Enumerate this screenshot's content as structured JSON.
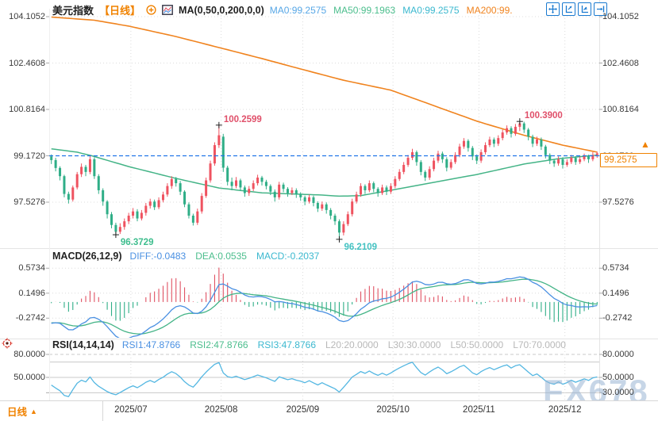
{
  "header": {
    "symbol": "美元指数",
    "timeframe": "【日线】",
    "ma_settings": "MA(0,50,0,200,0,0)",
    "ma_values": [
      {
        "label": "MA0:99.2575",
        "color": "#57a7e6"
      },
      {
        "label": "MA50:99.1963",
        "color": "#4cbe8d"
      },
      {
        "label": "MA0:99.2575",
        "color": "#3bb8cf"
      },
      {
        "label": "MA200:99.",
        "color": "#f0831e"
      }
    ]
  },
  "toolbar": {
    "icons": [
      "move-icon",
      "y-axis-scale-icon",
      "x-axis-scale-icon",
      "jump-to-latest-icon"
    ]
  },
  "axes": {
    "price": [
      "104.1052",
      "102.4608",
      "100.8164",
      "99.1720",
      "97.5276"
    ],
    "macd": [
      "0.5734",
      "0.1496",
      "-0.2742"
    ],
    "rsi_left": [
      "80.0000",
      "50.0000"
    ],
    "rsi_right": [
      "80.0000",
      "50.0000",
      "30.0000"
    ]
  },
  "price_pane": {
    "current_price": "99.2575",
    "arrow": "▲",
    "annotations": [
      {
        "text": "100.2599",
        "color": "#e0506a",
        "type": "high",
        "index": 39
      },
      {
        "text": "100.3900",
        "color": "#e0506a",
        "type": "high",
        "index": 109
      },
      {
        "text": "96.3729",
        "color": "#3dbd8d",
        "type": "low",
        "index": 15
      },
      {
        "text": "96.2109",
        "color": "#43c2c2",
        "type": "low",
        "index": 67
      }
    ]
  },
  "macd_pane": {
    "title": "MACD(26,12,9)",
    "values": [
      {
        "label": "DIFF:-0.0483",
        "color": "#4a90e2"
      },
      {
        "label": "DEA:0.0535",
        "color": "#4cbe8d"
      },
      {
        "label": "MACD:-0.2037",
        "color": "#3bb8cf"
      }
    ]
  },
  "rsi_pane": {
    "title": "RSI(14,14,14)",
    "values": [
      {
        "label": "RSI1:47.8766",
        "color": "#4a90e2"
      },
      {
        "label": "RSI2:47.8766",
        "color": "#4cbe8d"
      },
      {
        "label": "RSI3:47.8766",
        "color": "#3bb8cf"
      }
    ],
    "levels": [
      {
        "label": "L20:20.0000"
      },
      {
        "label": "L30:30.0000"
      },
      {
        "label": "L50:50.0000"
      },
      {
        "label": "L70:70.0000"
      }
    ]
  },
  "x_axis": {
    "tab_label": "日线",
    "tab_arrow": "▲",
    "dates": [
      "2025/07",
      "2025/08",
      "2025/09",
      "2025/10",
      "2025/11",
      "2025/12"
    ]
  },
  "watermark": "FX678",
  "colors": {
    "up": "#ef5360",
    "down": "#2fae87",
    "ma50": "#44b487",
    "ma200": "#f0831e",
    "diff": "#4a90e2",
    "dea": "#44b487",
    "macd_bar_pos": "#e05263",
    "macd_bar_neg": "#2fae87",
    "rsi": "#54b7e2",
    "accent": "#f08200",
    "dashed_line": "#2176e8",
    "grid": "#dcdcdc",
    "rsi_grid": "#c8c8c8",
    "border": "#e4e4e4",
    "axis_text": "#3a3a3a",
    "muted": "#b8b8b8"
  },
  "chart_data": {
    "type": "candlestick",
    "symbol": "美元指数",
    "interval": "日线",
    "dashed_level": 99.172,
    "last_price": 99.2575,
    "macd_params": [
      26,
      12,
      9
    ],
    "rsi_params": [
      14,
      14,
      14
    ],
    "y_axis_price": {
      "ticks": [
        104.1052,
        102.4608,
        100.8164,
        99.172,
        97.5276
      ]
    },
    "y_axis_macd": {
      "ticks": [
        0.5734,
        0.1496,
        -0.2742
      ]
    },
    "y_axis_rsi": {
      "ticks": [
        80,
        70,
        50,
        30,
        20
      ]
    },
    "month_start_indices": [
      19,
      40,
      59,
      80,
      100,
      120
    ],
    "month_labels": [
      "2025/07",
      "2025/08",
      "2025/09",
      "2025/10",
      "2025/11",
      "2025/12"
    ],
    "ma50_anchors": [
      [
        0,
        99.42
      ],
      [
        6,
        99.3
      ],
      [
        9,
        99.19
      ],
      [
        18,
        98.79
      ],
      [
        29,
        98.37
      ],
      [
        39,
        98.03
      ],
      [
        49,
        97.86
      ],
      [
        58,
        97.81
      ],
      [
        63,
        97.78
      ],
      [
        67,
        97.74
      ],
      [
        72,
        97.76
      ],
      [
        79,
        97.95
      ],
      [
        89,
        98.23
      ],
      [
        99,
        98.51
      ],
      [
        110,
        98.88
      ],
      [
        118,
        99.07
      ],
      [
        127,
        99.1963
      ]
    ],
    "ma200_anchors": [
      [
        0,
        104.09
      ],
      [
        10,
        103.98
      ],
      [
        18,
        103.77
      ],
      [
        29,
        103.4
      ],
      [
        39,
        103.01
      ],
      [
        49,
        102.62
      ],
      [
        58,
        102.25
      ],
      [
        68,
        101.85
      ],
      [
        79,
        101.5
      ],
      [
        89,
        100.95
      ],
      [
        99,
        100.4
      ],
      [
        110,
        99.9
      ],
      [
        119,
        99.55
      ],
      [
        127,
        99.3
      ]
    ],
    "candles": [
      [
        99.15,
        99.22,
        98.88,
        99.02
      ],
      [
        99.02,
        99.1,
        98.62,
        98.74
      ],
      [
        98.74,
        98.8,
        98.3,
        98.45
      ],
      [
        98.45,
        98.5,
        97.7,
        97.82
      ],
      [
        97.82,
        97.9,
        97.48,
        97.62
      ],
      [
        97.62,
        98.12,
        97.55,
        98.05
      ],
      [
        98.05,
        98.6,
        97.98,
        98.52
      ],
      [
        98.52,
        98.9,
        98.42,
        98.78
      ],
      [
        98.78,
        98.85,
        98.45,
        98.6
      ],
      [
        98.6,
        99.18,
        98.52,
        99.05
      ],
      [
        99.05,
        99.12,
        98.35,
        98.45
      ],
      [
        98.45,
        98.52,
        97.82,
        97.95
      ],
      [
        97.95,
        98.02,
        97.4,
        97.55
      ],
      [
        97.55,
        97.6,
        96.95,
        97.1
      ],
      [
        97.1,
        97.18,
        96.6,
        96.72
      ],
      [
        96.72,
        96.8,
        96.3729,
        96.48
      ],
      [
        96.48,
        96.78,
        96.4,
        96.65
      ],
      [
        96.65,
        96.95,
        96.55,
        96.85
      ],
      [
        96.85,
        97.15,
        96.75,
        97.05
      ],
      [
        97.05,
        97.32,
        96.95,
        97.2
      ],
      [
        97.2,
        97.28,
        96.85,
        96.95
      ],
      [
        96.95,
        97.25,
        96.88,
        97.15
      ],
      [
        97.15,
        97.5,
        97.05,
        97.4
      ],
      [
        97.4,
        97.65,
        97.3,
        97.55
      ],
      [
        97.55,
        97.62,
        97.25,
        97.35
      ],
      [
        97.35,
        97.7,
        97.28,
        97.6
      ],
      [
        97.6,
        97.9,
        97.52,
        97.8
      ],
      [
        97.8,
        98.2,
        97.72,
        98.1
      ],
      [
        98.1,
        98.45,
        98,
        98.35
      ],
      [
        98.35,
        98.42,
        98.08,
        98.2
      ],
      [
        98.2,
        98.28,
        97.78,
        97.9
      ],
      [
        97.9,
        97.95,
        97.35,
        97.45
      ],
      [
        97.45,
        97.52,
        96.95,
        97.05
      ],
      [
        97.05,
        97.12,
        96.7,
        96.8
      ],
      [
        96.8,
        97.3,
        96.72,
        97.2
      ],
      [
        97.2,
        97.85,
        97.12,
        97.75
      ],
      [
        97.75,
        98.4,
        97.68,
        98.3
      ],
      [
        98.3,
        99,
        98.22,
        98.9
      ],
      [
        98.9,
        99.65,
        98.82,
        99.55
      ],
      [
        99.55,
        100.2599,
        99.45,
        99.9
      ],
      [
        99.85,
        99.95,
        98.6,
        98.75
      ],
      [
        98.75,
        98.82,
        98.12,
        98.25
      ],
      [
        98.25,
        98.4,
        97.95,
        98.1
      ],
      [
        98.1,
        98.42,
        98.02,
        98.3
      ],
      [
        98.3,
        98.36,
        97.92,
        98.05
      ],
      [
        98.05,
        98.12,
        97.72,
        97.85
      ],
      [
        97.85,
        98.1,
        97.75,
        98
      ],
      [
        98,
        98.3,
        97.92,
        98.2
      ],
      [
        98.2,
        98.5,
        98.12,
        98.4
      ],
      [
        98.4,
        98.46,
        98.12,
        98.25
      ],
      [
        98.25,
        98.32,
        97.98,
        98.1
      ],
      [
        98.1,
        98.16,
        97.78,
        97.9
      ],
      [
        97.9,
        97.98,
        97.55,
        97.7
      ],
      [
        97.7,
        98.25,
        97.62,
        98.15
      ],
      [
        98.15,
        98.22,
        97.88,
        98
      ],
      [
        98,
        98.06,
        97.72,
        97.85
      ],
      [
        97.85,
        98.05,
        97.78,
        97.95
      ],
      [
        97.95,
        98.02,
        97.68,
        97.8
      ],
      [
        97.8,
        97.88,
        97.58,
        97.7
      ],
      [
        97.7,
        97.76,
        97.42,
        97.55
      ],
      [
        97.55,
        97.8,
        97.48,
        97.7
      ],
      [
        97.7,
        97.76,
        97.38,
        97.5
      ],
      [
        97.5,
        97.56,
        97.18,
        97.3
      ],
      [
        97.3,
        97.55,
        97.22,
        97.45
      ],
      [
        97.45,
        97.52,
        97.12,
        97.25
      ],
      [
        97.25,
        97.32,
        96.92,
        97.05
      ],
      [
        97.05,
        97.12,
        96.72,
        96.85
      ],
      [
        96.85,
        96.92,
        96.2109,
        96.45
      ],
      [
        96.45,
        96.85,
        96.35,
        96.75
      ],
      [
        96.75,
        97.2,
        96.68,
        97.1
      ],
      [
        97.1,
        97.65,
        97.02,
        97.55
      ],
      [
        97.55,
        97.9,
        97.48,
        97.8
      ],
      [
        97.8,
        98.2,
        97.72,
        98.1
      ],
      [
        98.1,
        98.16,
        97.82,
        97.95
      ],
      [
        97.95,
        98.3,
        97.88,
        98.2
      ],
      [
        98.2,
        98.26,
        97.88,
        98
      ],
      [
        98,
        98.06,
        97.72,
        97.85
      ],
      [
        97.85,
        98.15,
        97.78,
        98.05
      ],
      [
        98.05,
        98.12,
        97.78,
        97.9
      ],
      [
        97.9,
        98.2,
        97.82,
        98.1
      ],
      [
        98.1,
        98.45,
        98.02,
        98.35
      ],
      [
        98.35,
        98.7,
        98.28,
        98.6
      ],
      [
        98.6,
        98.95,
        98.52,
        98.85
      ],
      [
        98.85,
        99.2,
        98.78,
        99.1
      ],
      [
        99.1,
        99.42,
        99.02,
        99.3
      ],
      [
        99.3,
        99.36,
        98.82,
        98.95
      ],
      [
        98.95,
        99.02,
        98.48,
        98.6
      ],
      [
        98.6,
        98.66,
        98.28,
        98.4
      ],
      [
        98.4,
        98.8,
        98.32,
        98.7
      ],
      [
        98.7,
        99.1,
        98.62,
        99
      ],
      [
        99,
        99.35,
        98.92,
        99.25
      ],
      [
        99.25,
        99.32,
        98.92,
        99.05
      ],
      [
        99.05,
        99.12,
        98.62,
        98.75
      ],
      [
        98.75,
        99.05,
        98.68,
        98.95
      ],
      [
        98.95,
        99.3,
        98.88,
        99.2
      ],
      [
        99.2,
        99.6,
        99.12,
        99.5
      ],
      [
        99.5,
        99.8,
        99.42,
        99.7
      ],
      [
        99.7,
        99.76,
        99.32,
        99.45
      ],
      [
        99.45,
        99.52,
        99.02,
        99.15
      ],
      [
        99.15,
        99.22,
        98.88,
        99
      ],
      [
        99,
        99.4,
        98.92,
        99.3
      ],
      [
        99.3,
        99.65,
        99.22,
        99.55
      ],
      [
        99.55,
        99.85,
        99.48,
        99.75
      ],
      [
        99.75,
        99.82,
        99.48,
        99.6
      ],
      [
        99.6,
        99.9,
        99.52,
        99.8
      ],
      [
        99.8,
        100.1,
        99.72,
        100
      ],
      [
        100,
        100.25,
        99.92,
        100.15
      ],
      [
        100.15,
        100.22,
        99.82,
        99.95
      ],
      [
        99.95,
        100.3,
        99.88,
        100.2
      ],
      [
        100.2,
        100.39,
        100.05,
        100.32
      ],
      [
        100.32,
        100.38,
        99.98,
        100.1
      ],
      [
        100.1,
        100.16,
        99.72,
        99.85
      ],
      [
        99.85,
        99.92,
        99.48,
        99.6
      ],
      [
        99.6,
        99.85,
        99.52,
        99.75
      ],
      [
        99.75,
        99.82,
        99.38,
        99.5
      ],
      [
        99.5,
        99.56,
        99.08,
        99.2
      ],
      [
        99.2,
        99.26,
        98.88,
        99
      ],
      [
        99,
        99.06,
        98.78,
        98.9
      ],
      [
        98.9,
        99.15,
        98.82,
        99.05
      ],
      [
        99.05,
        99.12,
        98.72,
        98.85
      ],
      [
        98.85,
        99.05,
        98.78,
        98.95
      ],
      [
        98.95,
        99.2,
        98.88,
        99.1
      ],
      [
        99.1,
        99.16,
        98.85,
        98.95
      ],
      [
        98.95,
        99.15,
        98.88,
        99.05
      ],
      [
        99.05,
        99.25,
        98.98,
        99.15
      ],
      [
        99.15,
        99.21,
        98.92,
        99.05
      ],
      [
        99.05,
        99.3,
        98.98,
        99.2
      ],
      [
        99.2,
        99.32,
        99.1,
        99.26
      ]
    ]
  }
}
